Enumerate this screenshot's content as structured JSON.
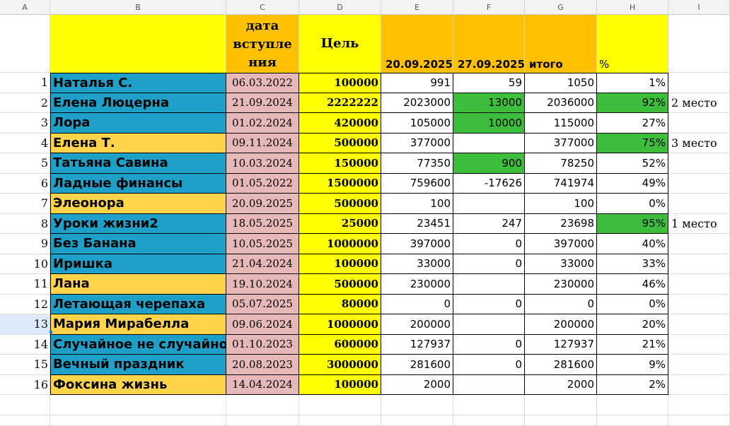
{
  "columns": [
    "A",
    "B",
    "C",
    "D",
    "E",
    "F",
    "G",
    "H",
    "I"
  ],
  "header": {
    "c_label": "дата вступле ния",
    "d_label": "Цель",
    "e_label": "20.09.2025",
    "f_label": "27.09.2025",
    "g_label": "итого",
    "h_label": "%"
  },
  "colors": {
    "yellow": "#ffff00",
    "orange": "#ffc000",
    "teal": "#1ea0c8",
    "gold": "#ffd34a",
    "pink": "#e6b8b7",
    "green": "#3cbe3c"
  },
  "rows": [
    {
      "n": "1",
      "name": "Наталья С.",
      "date": "06.03.2022",
      "goal": "100000",
      "e": "991",
      "f": "59",
      "g": "1050",
      "h": "1%",
      "i": "",
      "name_bg": "teal",
      "f_green": false,
      "h_green": false
    },
    {
      "n": "2",
      "name": "Елена Люцерна",
      "date": "21.09.2024",
      "goal": "2222222",
      "e": "2023000",
      "f": "13000",
      "g": "2036000",
      "h": "92%",
      "i": "2 место",
      "name_bg": "teal",
      "f_green": true,
      "h_green": true
    },
    {
      "n": "3",
      "name": "Лора",
      "date": "01.02.2024",
      "goal": "420000",
      "e": "105000",
      "f": "10000",
      "g": "115000",
      "h": "27%",
      "i": "",
      "name_bg": "teal",
      "f_green": true,
      "h_green": false
    },
    {
      "n": "4",
      "name": "Елена Т.",
      "date": "09.11.2024",
      "goal": "500000",
      "e": "377000",
      "f": "",
      "g": "377000",
      "h": "75%",
      "i": "3 место",
      "name_bg": "gold",
      "f_green": false,
      "h_green": true
    },
    {
      "n": "5",
      "name": "Татьяна Савина",
      "date": "10.03.2024",
      "goal": "150000",
      "e": "77350",
      "f": "900",
      "g": "78250",
      "h": "52%",
      "i": "",
      "name_bg": "teal",
      "f_green": true,
      "h_green": false
    },
    {
      "n": "6",
      "name": "Ладные финансы",
      "date": "01.05.2022",
      "goal": "1500000",
      "e": "759600",
      "f": "-17626",
      "g": "741974",
      "h": "49%",
      "i": "",
      "name_bg": "teal",
      "f_green": false,
      "h_green": false
    },
    {
      "n": "7",
      "name": "Элеонора",
      "date": "20.09.2025",
      "goal": "500000",
      "e": "100",
      "f": "",
      "g": "100",
      "h": "0%",
      "i": "",
      "name_bg": "gold",
      "f_green": false,
      "h_green": false
    },
    {
      "n": "8",
      "name": "Уроки жизни2",
      "date": "18.05.2025",
      "goal": "25000",
      "e": "23451",
      "f": "247",
      "g": "23698",
      "h": "95%",
      "i": "1 место",
      "name_bg": "teal",
      "f_green": false,
      "h_green": true
    },
    {
      "n": "9",
      "name": "Без Банана",
      "date": "10.05.2025",
      "goal": "1000000",
      "e": "397000",
      "f": "0",
      "g": "397000",
      "h": "40%",
      "i": "",
      "name_bg": "teal",
      "f_green": false,
      "h_green": false
    },
    {
      "n": "10",
      "name": "Иришка",
      "date": "21.04.2024",
      "goal": "100000",
      "e": "33000",
      "f": "0",
      "g": "33000",
      "h": "33%",
      "i": "",
      "name_bg": "teal",
      "f_green": false,
      "h_green": false
    },
    {
      "n": "11",
      "name": "Лана",
      "date": "19.10.2024",
      "goal": "500000",
      "e": "230000",
      "f": "",
      "g": "230000",
      "h": "46%",
      "i": "",
      "name_bg": "gold",
      "f_green": false,
      "h_green": false
    },
    {
      "n": "12",
      "name": "Летающая черепаха",
      "date": "05.07.2025",
      "goal": "80000",
      "e": "0",
      "f": "0",
      "g": "0",
      "h": "0%",
      "i": "",
      "name_bg": "teal",
      "f_green": false,
      "h_green": false
    },
    {
      "n": "13",
      "name": "Мария Мирабелла",
      "date": "09.06.2024",
      "goal": "1000000",
      "e": "200000",
      "f": "",
      "g": "200000",
      "h": "20%",
      "i": "",
      "name_bg": "gold",
      "f_green": false,
      "h_green": false
    },
    {
      "n": "14",
      "name": "Случайное не случайно",
      "date": "01.10.2023",
      "goal": "600000",
      "e": "127937",
      "f": "0",
      "g": "127937",
      "h": "21%",
      "i": "",
      "name_bg": "teal",
      "f_green": false,
      "h_green": false
    },
    {
      "n": "15",
      "name": "Вечный праздник",
      "date": "20.08.2023",
      "goal": "3000000",
      "e": "281600",
      "f": "0",
      "g": "281600",
      "h": "9%",
      "i": "",
      "name_bg": "teal",
      "f_green": false,
      "h_green": false
    },
    {
      "n": "16",
      "name": "Фоксина жизнь",
      "date": "14.04.2024",
      "goal": "100000",
      "e": "2000",
      "f": "",
      "g": "2000",
      "h": "2%",
      "i": "",
      "name_bg": "gold",
      "f_green": false,
      "h_green": false
    }
  ]
}
